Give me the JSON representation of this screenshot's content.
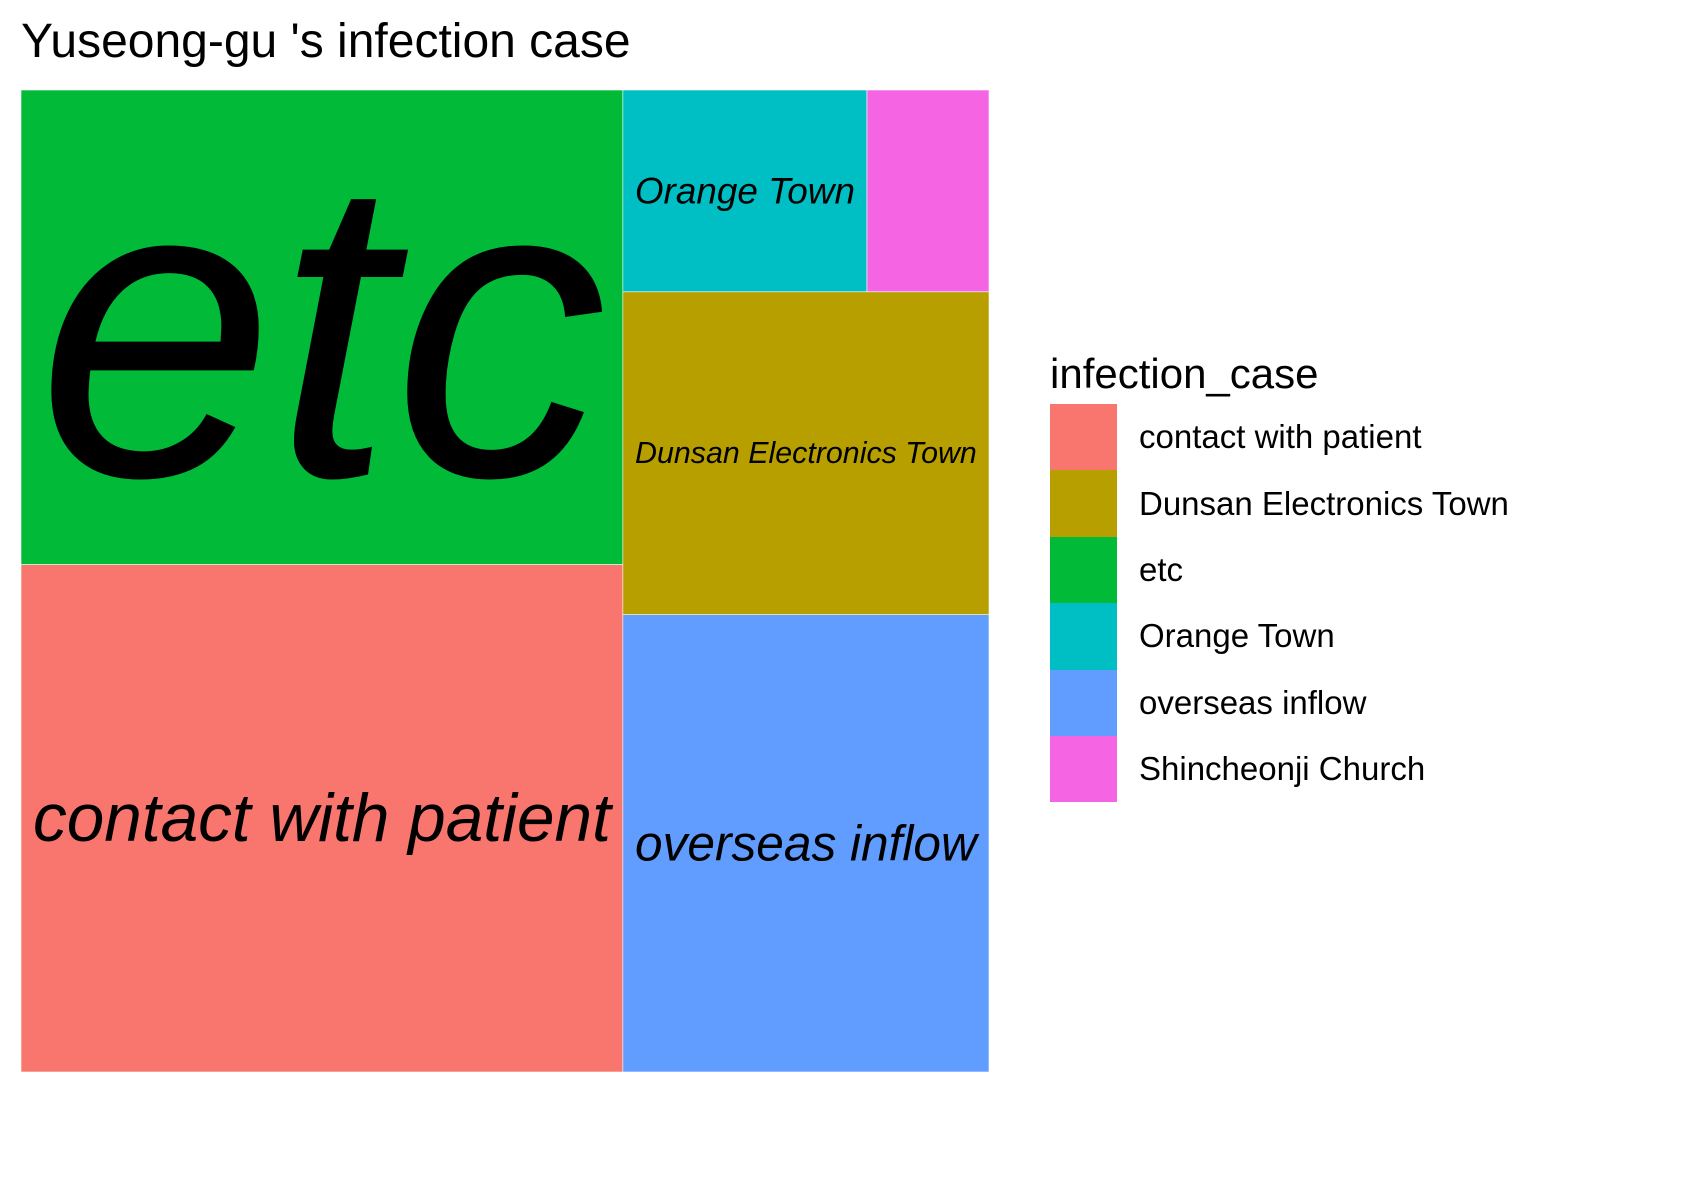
{
  "chart_data": {
    "type": "treemap",
    "title": "Yuseong-gu 's infection case",
    "legend": {
      "title": "infection_case",
      "position": "right",
      "entries": [
        "contact with patient",
        "Dunsan Electronics Town",
        "etc",
        "Orange Town",
        "overseas inflow",
        "Shincheonji Church"
      ]
    },
    "series": [
      {
        "name": "etc",
        "value": 29,
        "color": "#00BA38"
      },
      {
        "name": "contact with patient",
        "value": 31,
        "color": "#F8766D"
      },
      {
        "name": "overseas inflow",
        "value": 17,
        "color": "#619CFF"
      },
      {
        "name": "Dunsan Electronics Town",
        "value": 12,
        "color": "#B79F00"
      },
      {
        "name": "Orange Town",
        "value": 5,
        "color": "#00BFC4"
      },
      {
        "name": "Shincheonji Church",
        "value": 2.5,
        "color": "#F564E3"
      }
    ]
  }
}
